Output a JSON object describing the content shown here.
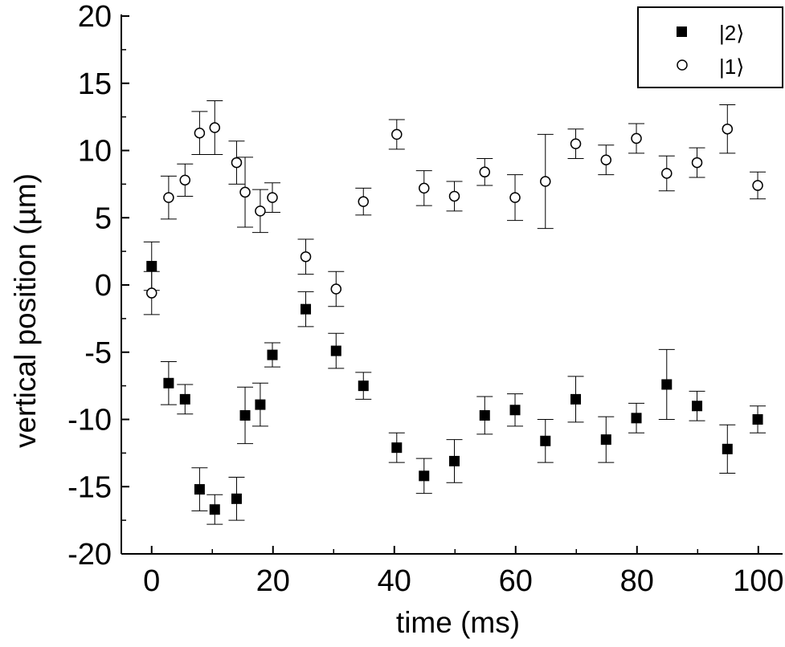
{
  "chart_data": {
    "type": "scatter",
    "title": "",
    "xlabel": "time (ms)",
    "ylabel": "vertical position (µm)",
    "xlim": [
      -5,
      104
    ],
    "ylim": [
      -20,
      20
    ],
    "xticks": [
      0,
      20,
      40,
      60,
      80,
      100
    ],
    "yticks": [
      20,
      15,
      10,
      5,
      0,
      -5,
      -10,
      -15,
      -20
    ],
    "xtick_labels": [
      "0",
      "20",
      "40",
      "60",
      "80",
      "100"
    ],
    "ytick_labels": [
      "20",
      "15",
      "10",
      "5",
      "0",
      "-5",
      "-10",
      "-15",
      "-20"
    ],
    "grid": false,
    "legend_position": "top-right",
    "series": [
      {
        "name": "|2⟩",
        "marker": "filled-square",
        "color": "#000000",
        "points": [
          {
            "x": 0,
            "y": 1.4,
            "err": 1.8
          },
          {
            "x": 2.8,
            "y": -7.3,
            "err": 1.6
          },
          {
            "x": 5.5,
            "y": -8.5,
            "err": 1.1
          },
          {
            "x": 7.9,
            "y": -15.2,
            "err": 1.6
          },
          {
            "x": 10.4,
            "y": -16.7,
            "err": 1.1
          },
          {
            "x": 14,
            "y": -15.9,
            "err": 1.6
          },
          {
            "x": 15.4,
            "y": -9.7,
            "err": 2.1
          },
          {
            "x": 17.9,
            "y": -8.9,
            "err": 1.6
          },
          {
            "x": 19.9,
            "y": -5.2,
            "err": 0.9
          },
          {
            "x": 25.4,
            "y": -1.8,
            "err": 1.3
          },
          {
            "x": 30.4,
            "y": -4.9,
            "err": 1.3
          },
          {
            "x": 34.9,
            "y": -7.5,
            "err": 1.0
          },
          {
            "x": 40.4,
            "y": -12.1,
            "err": 1.1
          },
          {
            "x": 44.9,
            "y": -14.2,
            "err": 1.3
          },
          {
            "x": 49.9,
            "y": -13.1,
            "err": 1.6
          },
          {
            "x": 54.9,
            "y": -9.7,
            "err": 1.4
          },
          {
            "x": 59.9,
            "y": -9.3,
            "err": 1.2
          },
          {
            "x": 64.9,
            "y": -11.6,
            "err": 1.6
          },
          {
            "x": 69.9,
            "y": -8.5,
            "err": 1.7
          },
          {
            "x": 74.9,
            "y": -11.5,
            "err": 1.7
          },
          {
            "x": 79.9,
            "y": -9.9,
            "err": 1.1
          },
          {
            "x": 84.9,
            "y": -7.4,
            "err": 2.6
          },
          {
            "x": 89.9,
            "y": -9.0,
            "err": 1.1
          },
          {
            "x": 94.9,
            "y": -12.2,
            "err": 1.8
          },
          {
            "x": 99.9,
            "y": -10.0,
            "err": 1.0
          }
        ]
      },
      {
        "name": "|1⟩",
        "marker": "open-circle",
        "color": "#000000",
        "points": [
          {
            "x": 0,
            "y": -0.6,
            "err": 1.6
          },
          {
            "x": 2.8,
            "y": 6.5,
            "err": 1.6
          },
          {
            "x": 5.5,
            "y": 7.8,
            "err": 1.2
          },
          {
            "x": 7.9,
            "y": 11.3,
            "err": 1.6
          },
          {
            "x": 10.4,
            "y": 11.7,
            "err": 2.0
          },
          {
            "x": 14,
            "y": 9.1,
            "err": 1.6
          },
          {
            "x": 15.4,
            "y": 6.9,
            "err": 2.6
          },
          {
            "x": 17.9,
            "y": 5.5,
            "err": 1.6
          },
          {
            "x": 19.9,
            "y": 6.5,
            "err": 1.1
          },
          {
            "x": 25.4,
            "y": 2.1,
            "err": 1.3
          },
          {
            "x": 30.4,
            "y": -0.3,
            "err": 1.3
          },
          {
            "x": 34.9,
            "y": 6.2,
            "err": 1.0
          },
          {
            "x": 40.4,
            "y": 11.2,
            "err": 1.1
          },
          {
            "x": 44.9,
            "y": 7.2,
            "err": 1.3
          },
          {
            "x": 49.9,
            "y": 6.6,
            "err": 1.1
          },
          {
            "x": 54.9,
            "y": 8.4,
            "err": 1.0
          },
          {
            "x": 59.9,
            "y": 6.5,
            "err": 1.7
          },
          {
            "x": 64.9,
            "y": 7.7,
            "err": 3.5
          },
          {
            "x": 69.9,
            "y": 10.5,
            "err": 1.1
          },
          {
            "x": 74.9,
            "y": 9.3,
            "err": 1.1
          },
          {
            "x": 79.9,
            "y": 10.9,
            "err": 1.1
          },
          {
            "x": 84.9,
            "y": 8.3,
            "err": 1.3
          },
          {
            "x": 89.9,
            "y": 9.1,
            "err": 1.1
          },
          {
            "x": 94.9,
            "y": 11.6,
            "err": 1.8
          },
          {
            "x": 99.9,
            "y": 7.4,
            "err": 1.0
          }
        ]
      }
    ]
  }
}
